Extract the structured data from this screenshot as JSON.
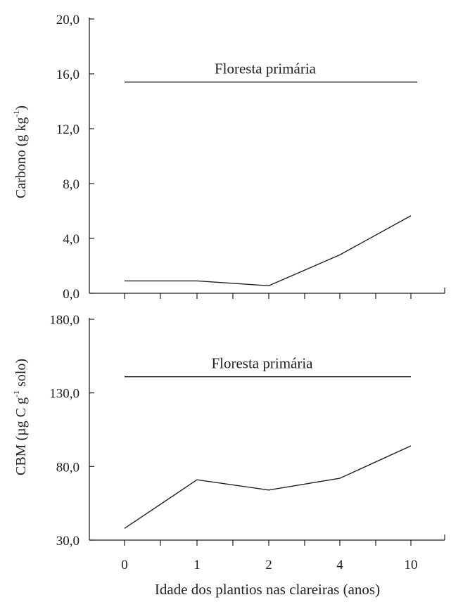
{
  "chart_data": [
    {
      "type": "line",
      "ylabel_main": "Carbono (g kg",
      "ylabel_sup": "-1",
      "ylabel_end": ")",
      "ylim": [
        0,
        20
      ],
      "yticks": [
        "0,0",
        "4,0",
        "8,0",
        "12,0",
        "16,0",
        "20,0"
      ],
      "ytick_values": [
        0,
        4,
        8,
        12,
        16,
        20
      ],
      "categories": [
        "0",
        "1",
        "2",
        "4",
        "10"
      ],
      "values": [
        0.9,
        0.9,
        0.55,
        2.8,
        5.65
      ],
      "reference_line": {
        "label": "Floresta primária",
        "value": 15.4
      },
      "grid": false
    },
    {
      "type": "line",
      "ylabel_main": "CBM (µg C g",
      "ylabel_sup": "-1",
      "ylabel_end": " solo)",
      "ylim": [
        30,
        180
      ],
      "yticks": [
        "30,0",
        "80,0",
        "130,0",
        "180,0"
      ],
      "ytick_values": [
        30,
        80,
        130,
        180
      ],
      "categories": [
        "0",
        "1",
        "2",
        "4",
        "10"
      ],
      "values": [
        38,
        71,
        64,
        72,
        94
      ],
      "reference_line": {
        "label": "Floresta primária",
        "value": 141
      },
      "grid": false
    }
  ],
  "xlabel": "Idade dos plantios nas clareiras (anos)",
  "xticks": [
    "0",
    "1",
    "2",
    "4",
    "10"
  ]
}
